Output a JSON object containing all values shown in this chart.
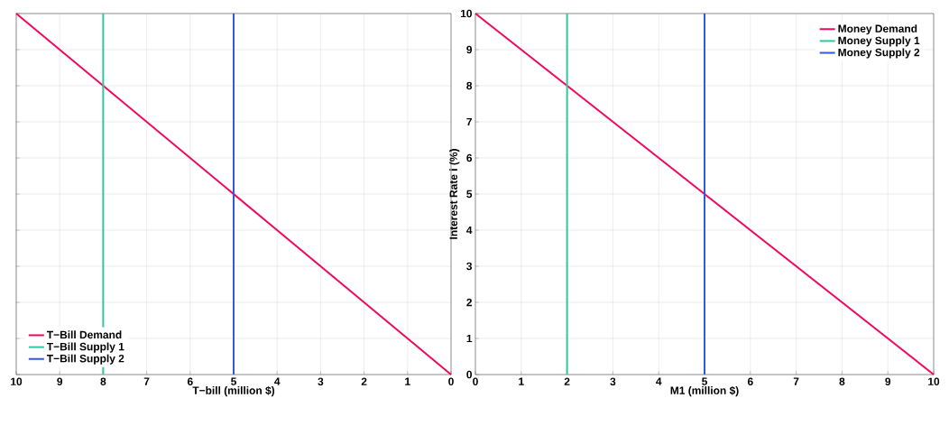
{
  "chart_data": [
    {
      "type": "line",
      "xlabel": "T−bill (million $)",
      "xlim": [
        10,
        0
      ],
      "ylim": [
        0,
        10
      ],
      "xticks": [
        10,
        9,
        8,
        7,
        6,
        5,
        4,
        3,
        2,
        1,
        0
      ],
      "yticks": [
        0,
        1,
        2,
        3,
        4,
        5,
        6,
        7,
        8,
        9,
        10
      ],
      "tick_labels": "x",
      "grid": true,
      "legend": "bottom left",
      "series": [
        {
          "name": "T−Bill Demand",
          "color": "#f2075e",
          "x": [
            10,
            0
          ],
          "values": [
            10,
            0
          ]
        },
        {
          "name": "T−Bill Supply 1",
          "color": "#2ec99b",
          "x": [
            8,
            8
          ],
          "values": [
            0,
            10
          ]
        },
        {
          "name": "T−Bill Supply 2",
          "color": "#3358dc",
          "x": [
            5,
            5
          ],
          "values": [
            0,
            10
          ]
        }
      ]
    },
    {
      "type": "line",
      "xlabel": "M1 (million $)",
      "ylabel": "Interest Rate i (%)",
      "xlim": [
        0,
        10
      ],
      "ylim": [
        0,
        10
      ],
      "xticks": [
        0,
        1,
        2,
        3,
        4,
        5,
        6,
        7,
        8,
        9,
        10
      ],
      "yticks": [
        0,
        1,
        2,
        3,
        4,
        5,
        6,
        7,
        8,
        9,
        10
      ],
      "grid": true,
      "legend": "top right",
      "series": [
        {
          "name": "Money Demand",
          "color": "#f2075e",
          "x": [
            0,
            10
          ],
          "values": [
            10,
            0
          ]
        },
        {
          "name": "Money Supply 1",
          "color": "#2ec99b",
          "x": [
            2,
            2
          ],
          "values": [
            0,
            10
          ]
        },
        {
          "name": "Money Supply 2",
          "color": "#3358dc",
          "x": [
            5,
            5
          ],
          "values": [
            0,
            10
          ]
        }
      ]
    }
  ]
}
